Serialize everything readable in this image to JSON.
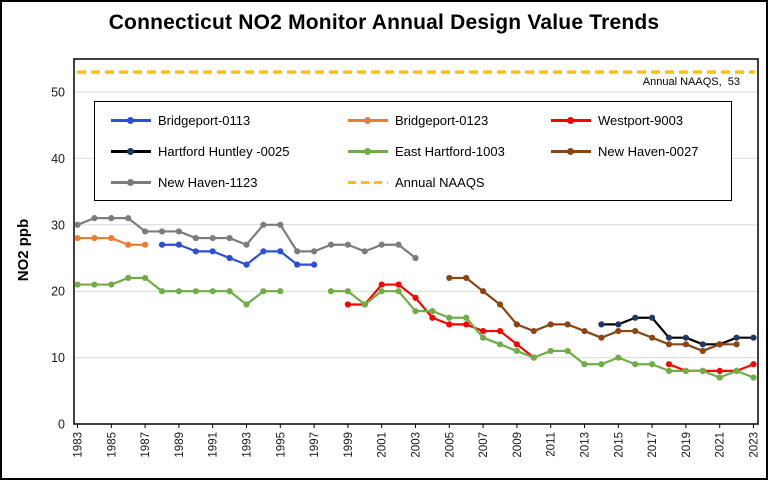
{
  "title": "Connecticut NO2 Monitor Annual Design Value Trends",
  "y_axis": {
    "label": "NO2 ppb",
    "ticks": [
      0,
      10,
      20,
      30,
      40,
      50
    ]
  },
  "x_axis": {
    "ticks": [
      1983,
      1985,
      1987,
      1989,
      1991,
      1993,
      1995,
      1997,
      1999,
      2001,
      2003,
      2005,
      2007,
      2009,
      2011,
      2013,
      2015,
      2017,
      2019,
      2021,
      2023
    ]
  },
  "naaqs": {
    "label": "Annual NAAQS,  53",
    "value": 53,
    "color": "#FFC000"
  },
  "legend": {
    "items": [
      {
        "label": "Bridgeport-0113",
        "color": "#2B4FD6",
        "style": "solid"
      },
      {
        "label": "Bridgeport-0123",
        "color": "#ED7D31",
        "style": "solid"
      },
      {
        "label": "Westport-9003",
        "color": "#FF0000",
        "style": "solid"
      },
      {
        "label": "Hartford Huntley -0025",
        "color": "#000000",
        "marker_color": "#1F3864",
        "style": "solid"
      },
      {
        "label": "East Hartford-1003",
        "color": "#70AD47",
        "style": "solid"
      },
      {
        "label": "New Haven-0027",
        "color": "#8B4513",
        "style": "solid"
      },
      {
        "label": "New Haven-1123",
        "color": "#7C7C7C",
        "style": "solid"
      },
      {
        "label": "Annual NAAQS",
        "color": "#FFC000",
        "style": "dashed"
      }
    ]
  },
  "chart_data": {
    "type": "line",
    "title": "Connecticut NO2 Monitor Annual Design Value Trends",
    "xlabel": "",
    "ylabel": "NO2 ppb",
    "xlim": [
      1983,
      2023
    ],
    "ylim": [
      0,
      55
    ],
    "grid": "horizontal",
    "legend_position": "inside-top-left",
    "reference_line": {
      "name": "Annual NAAQS",
      "value": 53,
      "style": "dashed",
      "color": "#FFC000"
    },
    "series": [
      {
        "name": "Bridgeport-0113",
        "color": "#2B4FD6",
        "points": [
          [
            1988,
            27
          ],
          [
            1989,
            27
          ],
          [
            1990,
            26
          ],
          [
            1991,
            26
          ],
          [
            1992,
            25
          ],
          [
            1993,
            24
          ],
          [
            1994,
            26
          ],
          [
            1995,
            26
          ],
          [
            1996,
            24
          ],
          [
            1997,
            24
          ]
        ]
      },
      {
        "name": "Bridgeport-0123",
        "color": "#ED7D31",
        "points": [
          [
            1983,
            28
          ],
          [
            1984,
            28
          ],
          [
            1985,
            28
          ],
          [
            1986,
            27
          ],
          [
            1987,
            27
          ]
        ]
      },
      {
        "name": "Westport-9003",
        "color": "#FF0000",
        "points": [
          [
            1999,
            18
          ],
          [
            2000,
            18
          ],
          [
            2001,
            21
          ],
          [
            2002,
            21
          ],
          [
            2003,
            19
          ],
          [
            2004,
            16
          ],
          [
            2005,
            15
          ],
          [
            2006,
            15
          ],
          [
            2007,
            14
          ],
          [
            2008,
            14
          ],
          [
            2009,
            12
          ],
          [
            2010,
            10
          ],
          [
            2018,
            9
          ],
          [
            2019,
            8
          ],
          [
            2020,
            8
          ],
          [
            2021,
            8
          ],
          [
            2022,
            8
          ],
          [
            2023,
            9
          ]
        ]
      },
      {
        "name": "Hartford Huntley -0025",
        "color": "#000000",
        "marker_color": "#1F3864",
        "points": [
          [
            2014,
            15
          ],
          [
            2015,
            15
          ],
          [
            2016,
            16
          ],
          [
            2017,
            16
          ],
          [
            2018,
            13
          ],
          [
            2019,
            13
          ],
          [
            2020,
            12
          ],
          [
            2021,
            12
          ],
          [
            2022,
            13
          ],
          [
            2023,
            13
          ]
        ]
      },
      {
        "name": "East Hartford-1003",
        "color": "#70AD47",
        "points": [
          [
            1983,
            21
          ],
          [
            1984,
            21
          ],
          [
            1985,
            21
          ],
          [
            1986,
            22
          ],
          [
            1987,
            22
          ],
          [
            1988,
            20
          ],
          [
            1989,
            20
          ],
          [
            1990,
            20
          ],
          [
            1991,
            20
          ],
          [
            1992,
            20
          ],
          [
            1993,
            18
          ],
          [
            1994,
            20
          ],
          [
            1995,
            20
          ],
          [
            1998,
            20
          ],
          [
            1999,
            20
          ],
          [
            2000,
            18
          ],
          [
            2001,
            20
          ],
          [
            2002,
            20
          ],
          [
            2003,
            17
          ],
          [
            2004,
            17
          ],
          [
            2005,
            16
          ],
          [
            2006,
            16
          ],
          [
            2007,
            13
          ],
          [
            2008,
            12
          ],
          [
            2009,
            11
          ],
          [
            2010,
            10
          ],
          [
            2011,
            11
          ],
          [
            2012,
            11
          ],
          [
            2013,
            9
          ],
          [
            2014,
            9
          ],
          [
            2015,
            10
          ],
          [
            2016,
            9
          ],
          [
            2017,
            9
          ],
          [
            2018,
            8
          ],
          [
            2019,
            8
          ],
          [
            2020,
            8
          ],
          [
            2021,
            7
          ],
          [
            2022,
            8
          ],
          [
            2023,
            7
          ]
        ]
      },
      {
        "name": "New Haven-0027",
        "color": "#8B4513",
        "points": [
          [
            2005,
            22
          ],
          [
            2006,
            22
          ],
          [
            2007,
            20
          ],
          [
            2008,
            18
          ],
          [
            2009,
            15
          ],
          [
            2010,
            14
          ],
          [
            2011,
            15
          ],
          [
            2012,
            15
          ],
          [
            2013,
            14
          ],
          [
            2014,
            13
          ],
          [
            2015,
            14
          ],
          [
            2016,
            14
          ],
          [
            2017,
            13
          ],
          [
            2018,
            12
          ],
          [
            2019,
            12
          ],
          [
            2020,
            11
          ],
          [
            2021,
            12
          ],
          [
            2022,
            12
          ]
        ]
      },
      {
        "name": "New Haven-1123",
        "color": "#7C7C7C",
        "points": [
          [
            1983,
            30
          ],
          [
            1984,
            31
          ],
          [
            1985,
            31
          ],
          [
            1986,
            31
          ],
          [
            1987,
            29
          ],
          [
            1988,
            29
          ],
          [
            1989,
            29
          ],
          [
            1990,
            28
          ],
          [
            1991,
            28
          ],
          [
            1992,
            28
          ],
          [
            1993,
            27
          ],
          [
            1994,
            30
          ],
          [
            1995,
            30
          ],
          [
            1996,
            26
          ],
          [
            1997,
            26
          ],
          [
            1998,
            27
          ],
          [
            1999,
            27
          ],
          [
            2000,
            26
          ],
          [
            2001,
            27
          ],
          [
            2002,
            27
          ],
          [
            2003,
            25
          ]
        ]
      }
    ]
  }
}
